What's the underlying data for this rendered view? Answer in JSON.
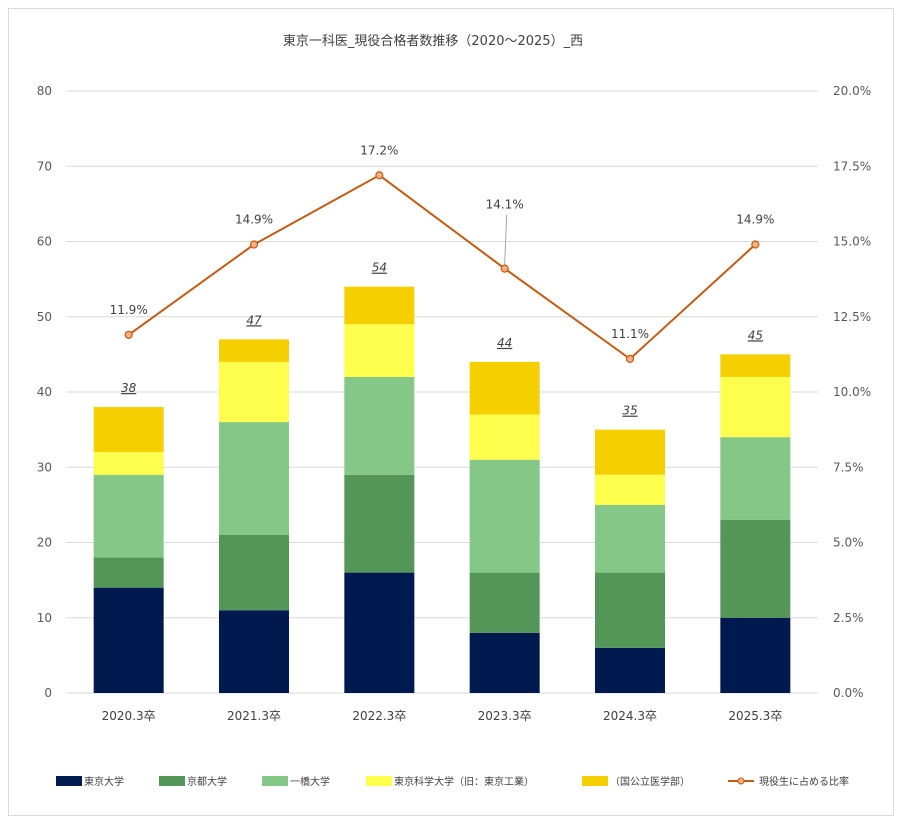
{
  "chart_data": {
    "type": "bar",
    "stacked": true,
    "title": "東京一科医_現役合格者数推移（2020～2025）_西",
    "categories": [
      "2020.3卒",
      "2021.3卒",
      "2022.3卒",
      "2023.3卒",
      "2024.3卒",
      "2025.3卒"
    ],
    "series": [
      {
        "name": "東京大学",
        "color": "#001a50",
        "values": [
          14,
          11,
          16,
          8,
          6,
          10
        ]
      },
      {
        "name": "京都大学",
        "color": "#539657",
        "values": [
          4,
          10,
          13,
          8,
          10,
          13
        ]
      },
      {
        "name": "一橋大学",
        "color": "#84c786",
        "values": [
          11,
          15,
          13,
          15,
          9,
          11
        ]
      },
      {
        "name": "東京科学大学（旧：東京工業）",
        "color": "#ffff4d",
        "values": [
          3,
          8,
          7,
          6,
          4,
          8
        ]
      },
      {
        "name": "（国公立医学部）",
        "color": "#f5cf00",
        "values": [
          6,
          3,
          5,
          7,
          6,
          3
        ]
      }
    ],
    "totals": [
      "38",
      "47",
      "54",
      "44",
      "35",
      "45"
    ],
    "line_series": {
      "name": "現役生に占める比率",
      "color": "#c55a11",
      "axis": "secondary",
      "values": [
        11.9,
        14.9,
        17.2,
        14.1,
        11.1,
        14.9
      ],
      "labels": [
        "11.9%",
        "14.9%",
        "17.2%",
        "14.1%",
        "11.1%",
        "14.9%"
      ]
    },
    "y_axis": {
      "ylim": [
        0,
        80
      ],
      "ticks": [
        "0",
        "10",
        "20",
        "30",
        "40",
        "50",
        "60",
        "70",
        "80"
      ]
    },
    "y2_axis": {
      "ylim": [
        0,
        20
      ],
      "ticks": [
        "0.0%",
        "2.5%",
        "5.0%",
        "7.5%",
        "10.0%",
        "12.5%",
        "15.0%",
        "17.5%",
        "20.0%"
      ]
    },
    "grid": true,
    "legend_position": "bottom"
  }
}
